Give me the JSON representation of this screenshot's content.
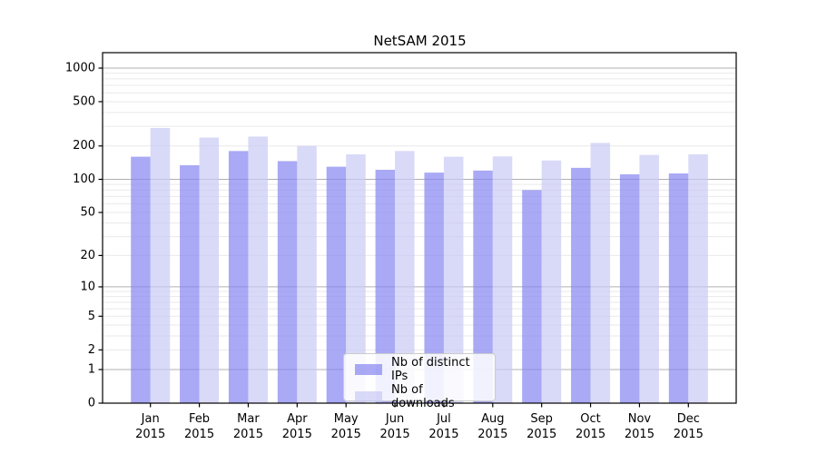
{
  "title": "NetSAM 2015",
  "colors": {
    "ips_bar": "#8484f1",
    "downloads_bar": "#c9c9f5",
    "bar_opacity": 0.7,
    "grid_major": "#b0b0b0",
    "grid_minor": "#e9e9e9",
    "axis": "#000000",
    "text": "#000000"
  },
  "chart_data": {
    "type": "bar",
    "title": "NetSAM 2015",
    "scale": "log1p",
    "grid": true,
    "legend_position": "lower center",
    "categories": [
      "Jan 2015",
      "Feb 2015",
      "Mar 2015",
      "Apr 2015",
      "May 2015",
      "Jun 2015",
      "Jul 2015",
      "Aug 2015",
      "Sep 2015",
      "Oct 2015",
      "Nov 2015",
      "Dec 2015"
    ],
    "series": [
      {
        "name": "Nb of distinct IPs",
        "color": "#8484f1",
        "values": [
          160,
          134,
          180,
          146,
          130,
          122,
          115,
          120,
          80,
          127,
          111,
          113
        ]
      },
      {
        "name": "Nb of downloads",
        "color": "#c9c9f5",
        "values": [
          290,
          238,
          243,
          200,
          168,
          180,
          160,
          161,
          148,
          213,
          166,
          168
        ]
      }
    ],
    "yticks": [
      0,
      1,
      2,
      5,
      10,
      20,
      50,
      100,
      200,
      500,
      1000
    ],
    "ylim": [
      0,
      1375
    ],
    "xlabel": "",
    "ylabel": ""
  }
}
